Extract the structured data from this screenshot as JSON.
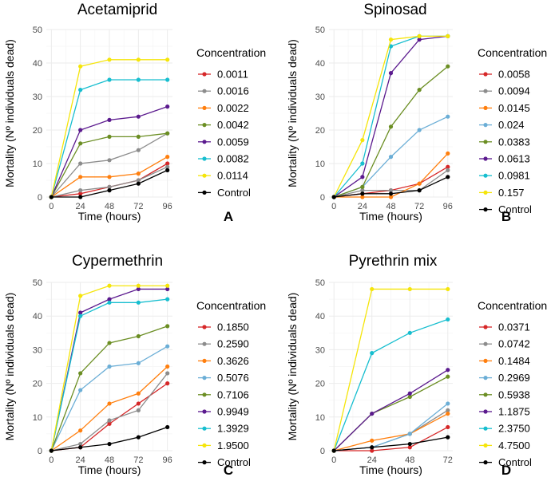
{
  "colors": {
    "red": "#d62728",
    "grey": "#8c8c8c",
    "orange": "#ff7f0e",
    "lightblue": "#6baed6",
    "olive": "#6b8e23",
    "purple": "#5b1a8e",
    "cyan": "#17becf",
    "yellow": "#f5e50a",
    "black": "#000000"
  },
  "chart_data": [
    {
      "type": "line",
      "panel_letter": "A",
      "title": "Acetamiprid",
      "xlabel": "Time (hours)",
      "ylabel": "Mortality (Nº individuals dead)",
      "legend_title": "Concentration",
      "x": [
        0,
        24,
        48,
        72,
        96
      ],
      "xticks": [
        0,
        24,
        48,
        72,
        96
      ],
      "ylim": [
        0,
        50
      ],
      "yticks": [
        0,
        10,
        20,
        30,
        40,
        50
      ],
      "series": [
        {
          "name": "0.0011",
          "color": "red",
          "values": [
            0,
            1,
            3,
            5,
            10
          ]
        },
        {
          "name": "0.0016",
          "color": "grey",
          "values": [
            0,
            2,
            3,
            5,
            9
          ]
        },
        {
          "name": "0.0022",
          "color": "orange",
          "values": [
            0,
            6,
            6,
            7,
            12
          ]
        },
        {
          "name": "0.0042",
          "color": "olive",
          "values": [
            0,
            16,
            18,
            18,
            19
          ]
        },
        {
          "name": "0.0059",
          "color": "purple",
          "values": [
            0,
            20,
            23,
            24,
            27
          ]
        },
        {
          "name": "0.0082",
          "color": "cyan",
          "values": [
            0,
            32,
            35,
            35,
            35
          ]
        },
        {
          "name": "0.0114",
          "color": "yellow",
          "values": [
            0,
            39,
            41,
            41,
            41
          ]
        },
        {
          "name": "Control",
          "color": "black",
          "values": [
            0,
            0,
            2,
            4,
            8
          ]
        }
      ],
      "extra_series": [
        {
          "color": "grey",
          "values": [
            0,
            10,
            11,
            14,
            19
          ]
        }
      ]
    },
    {
      "type": "line",
      "panel_letter": "B",
      "title": "Spinosad",
      "xlabel": "Time (hours)",
      "ylabel": "Mortality (Nº individuals dead)",
      "legend_title": "Concentration",
      "x": [
        0,
        24,
        48,
        72,
        96
      ],
      "xticks": [
        0,
        24,
        48,
        72,
        96
      ],
      "ylim": [
        0,
        50
      ],
      "yticks": [
        0,
        10,
        20,
        30,
        40,
        50
      ],
      "series": [
        {
          "name": "0.0058",
          "color": "red",
          "values": [
            0,
            1,
            2,
            4,
            9
          ]
        },
        {
          "name": "0.0094",
          "color": "grey",
          "values": [
            0,
            2,
            2,
            2,
            8
          ]
        },
        {
          "name": "0.0145",
          "color": "orange",
          "values": [
            0,
            0,
            0,
            4,
            13
          ]
        },
        {
          "name": "0.024",
          "color": "lightblue",
          "values": [
            0,
            3,
            12,
            20,
            24
          ]
        },
        {
          "name": "0.0383",
          "color": "olive",
          "values": [
            0,
            3,
            21,
            32,
            39
          ]
        },
        {
          "name": "0.0613",
          "color": "purple",
          "values": [
            0,
            6,
            37,
            47,
            48
          ]
        },
        {
          "name": "0.0981",
          "color": "cyan",
          "values": [
            0,
            10,
            45,
            48,
            48
          ]
        },
        {
          "name": "0.157",
          "color": "yellow",
          "values": [
            0,
            17,
            47,
            48,
            48
          ]
        },
        {
          "name": "Control",
          "color": "black",
          "values": [
            0,
            1,
            1,
            2,
            6
          ]
        }
      ]
    },
    {
      "type": "line",
      "panel_letter": "C",
      "title": "Cypermethrin",
      "xlabel": "Time (hours)",
      "ylabel": "Mortality (Nº individuals dead)",
      "legend_title": "Concentration",
      "x": [
        0,
        24,
        48,
        72,
        96
      ],
      "xticks": [
        0,
        24,
        48,
        72,
        96
      ],
      "ylim": [
        0,
        50
      ],
      "yticks": [
        0,
        10,
        20,
        30,
        40,
        50
      ],
      "series": [
        {
          "name": "0.1850",
          "color": "red",
          "values": [
            0,
            1,
            8,
            14,
            20
          ]
        },
        {
          "name": "0.2590",
          "color": "grey",
          "values": [
            0,
            2,
            9,
            12,
            23
          ]
        },
        {
          "name": "0.3626",
          "color": "orange",
          "values": [
            0,
            6,
            14,
            17,
            25
          ]
        },
        {
          "name": "0.5076",
          "color": "lightblue",
          "values": [
            0,
            18,
            25,
            26,
            31
          ]
        },
        {
          "name": "0.7106",
          "color": "olive",
          "values": [
            0,
            23,
            32,
            34,
            37
          ]
        },
        {
          "name": "0.9949",
          "color": "purple",
          "values": [
            0,
            41,
            45,
            48,
            48
          ]
        },
        {
          "name": "1.3929",
          "color": "cyan",
          "values": [
            0,
            40,
            44,
            44,
            45
          ]
        },
        {
          "name": "1.9500",
          "color": "yellow",
          "values": [
            0,
            46,
            49,
            49,
            49
          ]
        },
        {
          "name": "Control",
          "color": "black",
          "values": [
            0,
            1,
            2,
            4,
            7
          ]
        }
      ]
    },
    {
      "type": "line",
      "panel_letter": "D",
      "title": "Pyrethrin mix",
      "xlabel": "Time (hours)",
      "ylabel": "Mortality (Nº individuals dead)",
      "legend_title": "Concentration",
      "x": [
        0,
        24,
        48,
        72
      ],
      "xticks": [
        0,
        24,
        48,
        72
      ],
      "ylim": [
        0,
        50
      ],
      "yticks": [
        0,
        10,
        20,
        30,
        40,
        50
      ],
      "series": [
        {
          "name": "0.0371",
          "color": "red",
          "values": [
            0,
            0,
            1,
            7
          ]
        },
        {
          "name": "0.0742",
          "color": "grey",
          "values": [
            0,
            1,
            5,
            12
          ]
        },
        {
          "name": "0.1484",
          "color": "orange",
          "values": [
            0,
            3,
            5,
            11
          ]
        },
        {
          "name": "0.2969",
          "color": "lightblue",
          "values": [
            0,
            1,
            5,
            14
          ]
        },
        {
          "name": "0.5938",
          "color": "olive",
          "values": [
            0,
            11,
            16,
            22
          ]
        },
        {
          "name": "1.1875",
          "color": "purple",
          "values": [
            0,
            11,
            17,
            24
          ]
        },
        {
          "name": "2.3750",
          "color": "cyan",
          "values": [
            0,
            29,
            35,
            39
          ]
        },
        {
          "name": "4.7500",
          "color": "yellow",
          "values": [
            0,
            48,
            48,
            48
          ]
        },
        {
          "name": "Control",
          "color": "black",
          "values": [
            0,
            1,
            2,
            4
          ]
        }
      ]
    }
  ]
}
